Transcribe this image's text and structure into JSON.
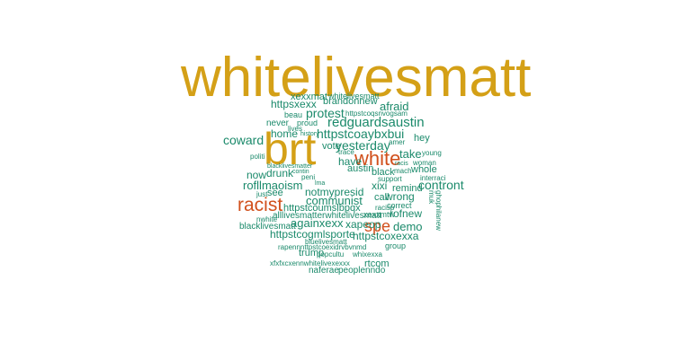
{
  "colors": {
    "gold": "#d4a017",
    "orange": "#d1501c",
    "green": "#1b8a6b",
    "background": "#ffffff"
  },
  "words": [
    "whitelivesmatt",
    "brt",
    "white",
    "racist",
    "spe",
    "xexxmat",
    "whitelivesmatt",
    "httpsxexx",
    "brandonnew",
    "afraid",
    "beau",
    "protest",
    "httpstcoqsnvogsam",
    "never",
    "proud",
    "lives",
    "redguardsaustin",
    "home",
    "history",
    "httpstcoaybxbui",
    "coward",
    "hey",
    "yesterday",
    "amer",
    "vote",
    "trace",
    "take",
    "young",
    "politi",
    "have",
    "racis",
    "woman",
    "now",
    "blacklivesmatter",
    "austin",
    "whole",
    "black",
    "drunk",
    "mach",
    "contin",
    "interraci",
    "peni",
    "support",
    "lma",
    "rofllmaoism",
    "contront",
    "remind",
    "just",
    "see",
    "notmypresid",
    "xixi",
    "communist",
    "wrong",
    "call",
    "httpstcoumslbpqx",
    "correct",
    "racisp",
    "xexxmtw",
    "rofnew",
    "nwhite",
    "alllivesmatterwhitelivesmatt",
    "blacklivesmatt",
    "againxexx",
    "xapeop",
    "demo",
    "httpstcogmlsporte",
    "httpstcoxexxa",
    "bluelivesmatt",
    "group",
    "rapennnttpstcoexidrvbvnmd",
    "trump",
    "popcultu",
    "whixexxa",
    "xfxfxcxennwhitelivexexxx",
    "rtcom",
    "naferae",
    "peoplenndo",
    "ghophilanew",
    "muk"
  ]
}
